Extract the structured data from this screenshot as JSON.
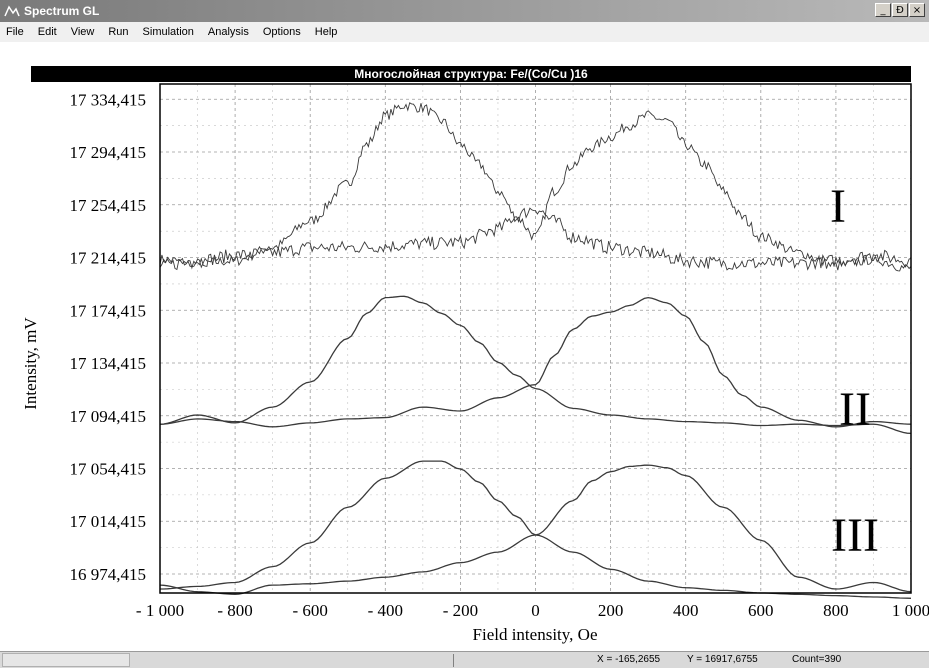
{
  "window": {
    "title": "Spectrum GL",
    "buttons": [
      "_",
      "Ɖ",
      "×"
    ]
  },
  "menu": [
    "File",
    "Edit",
    "View",
    "Run",
    "Simulation",
    "Analysis",
    "Options",
    "Help"
  ],
  "status": {
    "x": "X = -165,2655",
    "y": "Y = 16917,6755",
    "count": "Count=390"
  },
  "chart_data": {
    "type": "line",
    "title": "Многослойная структура: Fe/(Co/Cu )16",
    "xlabel": "Field intensity,  Oe",
    "ylabel": "Intensity,  mV",
    "xlim": [
      -1000,
      1000
    ],
    "ylim": [
      16960,
      17346
    ],
    "grid": true,
    "x_ticks": [
      -1000,
      -800,
      -600,
      -400,
      -200,
      0,
      200,
      400,
      600,
      800,
      1000
    ],
    "x_tick_labels": [
      "- 1 000",
      "- 800",
      "- 600",
      "- 400",
      "- 200",
      "0",
      "200",
      "400",
      "600",
      "800",
      "1 000"
    ],
    "y_ticks": [
      16974.415,
      17014.415,
      17054.415,
      17094.415,
      17134.415,
      17174.415,
      17214.415,
      17254.415,
      17294.415,
      17334.415
    ],
    "y_tick_labels": [
      "16 974,415",
      "17 014,415",
      "17 054,415",
      "17 094,415",
      "17 134,415",
      "17 174,415",
      "17 214,415",
      "17 254,415",
      "17 294,415",
      "17 334,415"
    ],
    "annotations": [
      "I",
      "II",
      "III"
    ],
    "line_color": "#3a3a3a",
    "series": [
      {
        "x": [
          -1000,
          -900,
          -800,
          -700,
          -600,
          -500,
          -450,
          -400,
          -350,
          -300,
          -250,
          -200,
          -150,
          -100,
          -50,
          0,
          50,
          100,
          150,
          200,
          250,
          300,
          350,
          400,
          450,
          500,
          550,
          600,
          700,
          800,
          900,
          1000
        ],
        "values": [
          17213,
          17210,
          17212,
          17222,
          17242,
          17270,
          17300,
          17322,
          17330,
          17328,
          17318,
          17300,
          17285,
          17265,
          17245,
          17230,
          17265,
          17285,
          17298,
          17306,
          17315,
          17322,
          17318,
          17300,
          17285,
          17265,
          17245,
          17230,
          17218,
          17208,
          17213,
          17206
        ],
        "noise": 4
      },
      {
        "x": [
          -1000,
          -900,
          -800,
          -700,
          -600,
          -500,
          -400,
          -300,
          -200,
          -100,
          -50,
          0,
          50,
          100,
          200,
          300,
          400,
          500,
          600,
          700,
          800,
          900,
          1000
        ],
        "values": [
          17208,
          17212,
          17216,
          17218,
          17222,
          17222,
          17223,
          17225,
          17226,
          17236,
          17246,
          17252,
          17242,
          17230,
          17222,
          17218,
          17212,
          17210,
          17210,
          17210,
          17212,
          17216,
          17212
        ],
        "noise": 5
      },
      {
        "x": [
          -1000,
          -900,
          -800,
          -700,
          -600,
          -500,
          -450,
          -400,
          -350,
          -300,
          -250,
          -200,
          -150,
          -100,
          -50,
          0,
          100,
          200,
          300,
          400,
          500,
          600,
          700,
          800,
          900,
          1000
        ],
        "values": [
          17088,
          17095,
          17089,
          17101,
          17120,
          17153,
          17172,
          17184,
          17185,
          17180,
          17172,
          17163,
          17150,
          17135,
          17125,
          17115,
          17100,
          17095,
          17092,
          17090,
          17089,
          17087,
          17088,
          17087,
          17088,
          17081
        ],
        "noise": 0
      },
      {
        "x": [
          -1000,
          -900,
          -800,
          -700,
          -600,
          -500,
          -400,
          -300,
          -200,
          -100,
          0,
          50,
          100,
          150,
          200,
          250,
          300,
          350,
          400,
          450,
          500,
          550,
          600,
          700,
          800,
          900,
          1000
        ],
        "values": [
          17088,
          17092,
          17090,
          17086,
          17089,
          17092,
          17093,
          17101,
          17098,
          17108,
          17118,
          17140,
          17160,
          17170,
          17173,
          17178,
          17184,
          17180,
          17170,
          17150,
          17125,
          17110,
          17101,
          17091,
          17086,
          17090,
          17088
        ],
        "noise": 0
      },
      {
        "x": [
          -1000,
          -900,
          -800,
          -700,
          -600,
          -500,
          -400,
          -300,
          -250,
          -200,
          -150,
          -100,
          -50,
          0,
          100,
          200,
          300,
          400,
          500,
          600,
          700,
          800,
          900,
          1000
        ],
        "values": [
          16963,
          16965,
          16968,
          16980,
          16998,
          17025,
          17047,
          17060,
          17060,
          17054,
          17044,
          17030,
          17018,
          17004,
          16991,
          16978,
          16969,
          16964,
          16962,
          16960,
          16959,
          16958,
          16957,
          16956
        ],
        "noise": 0
      },
      {
        "x": [
          -1000,
          -900,
          -800,
          -700,
          -600,
          -500,
          -400,
          -300,
          -200,
          -100,
          0,
          100,
          150,
          200,
          250,
          300,
          350,
          400,
          500,
          600,
          700,
          800,
          900,
          1000
        ],
        "values": [
          16966,
          16961,
          16959,
          16966,
          16967,
          16969,
          16972,
          16976,
          16983,
          16991,
          17004,
          17030,
          17045,
          17052,
          17056,
          17057,
          17055,
          17049,
          17025,
          17000,
          16972,
          16963,
          16968,
          16961
        ],
        "noise": 0
      }
    ]
  }
}
